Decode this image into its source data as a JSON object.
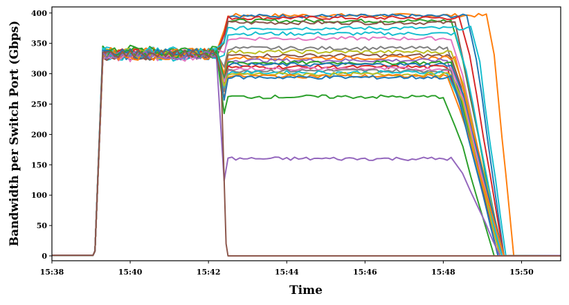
{
  "chart_data": {
    "type": "line",
    "title": "",
    "xlabel": "Time",
    "ylabel": "Bandwidth per Switch Port (Gbps)",
    "x_unit": "time of day (HH:MM)",
    "xlim": [
      "15:38",
      "15:51"
    ],
    "ylim": [
      -8,
      410
    ],
    "x_ticks": [
      "15:38",
      "15:40",
      "15:42",
      "15:44",
      "15:46",
      "15:48",
      "15:50"
    ],
    "y_ticks": [
      0,
      50,
      100,
      150,
      200,
      250,
      300,
      350,
      400
    ],
    "grid": false,
    "legend": "none",
    "phases": {
      "idle_start": "15:38",
      "ramp_1_start": "15:39",
      "plateau_1_start": "15:39.3",
      "phase_change": "15:42.3",
      "plateau_2_start": "15:42.5",
      "plateau_2_end": "15:48.2",
      "idle_end": "15:51"
    },
    "series": [
      {
        "color": "#ff7f0e",
        "plateau1": 335,
        "plateau2": 396,
        "ramp_start": "15:39.05",
        "drop_start": "15:49.2",
        "drop_end": "15:49.8"
      },
      {
        "color": "#1f77b4",
        "plateau1": 332,
        "plateau2": 395,
        "ramp_start": "15:39.05",
        "drop_start": "15:48.7",
        "drop_end": "15:49.55"
      },
      {
        "color": "#d62728",
        "plateau1": 334,
        "plateau2": 392,
        "ramp_start": "15:39.05",
        "drop_start": "15:48.5",
        "drop_end": "15:49.55"
      },
      {
        "color": "#2ca02c",
        "plateau1": 340,
        "plateau2": 387,
        "ramp_start": "15:39.05",
        "drop_start": "15:48.3",
        "drop_end": "15:49.5"
      },
      {
        "color": "#8c564b",
        "plateau1": 330,
        "plateau2": 384,
        "ramp_start": "15:39.05",
        "drop_start": "15:48.35",
        "drop_end": "15:49.5"
      },
      {
        "color": "#17becf",
        "plateau1": 337,
        "plateau2": 375,
        "ramp_start": "15:39.05",
        "drop_start": "15:48.8",
        "drop_end": "15:49.6"
      },
      {
        "color": "#17becf",
        "plateau1": 328,
        "plateau2": 366,
        "ramp_start": "15:39.05",
        "drop_start": "15:48.4",
        "drop_end": "15:49.5"
      },
      {
        "color": "#e377c2",
        "plateau1": 333,
        "plateau2": 358,
        "ramp_start": "15:39.05",
        "drop_start": "15:48.3",
        "drop_end": "15:49.45"
      },
      {
        "color": "#7f7f7f",
        "plateau1": 331,
        "plateau2": 342,
        "ramp_start": "15:39.05",
        "drop_start": "15:48.2",
        "drop_end": "15:49.5"
      },
      {
        "color": "#bcbd22",
        "plateau1": 335,
        "plateau2": 336,
        "ramp_start": "15:39.05",
        "drop_start": "15:48.3",
        "drop_end": "15:49.55"
      },
      {
        "color": "#8c564b",
        "plateau1": 329,
        "plateau2": 330,
        "ramp_start": "15:39.05",
        "drop_start": "15:48.25",
        "drop_end": "15:49.45"
      },
      {
        "color": "#ff7f0e",
        "plateau1": 336,
        "plateau2": 326,
        "ramp_start": "15:39.05",
        "drop_start": "15:48.35",
        "drop_end": "15:49.5"
      },
      {
        "color": "#9467bd",
        "plateau1": 332,
        "plateau2": 322,
        "ramp_start": "15:39.05",
        "drop_start": "15:48.2",
        "drop_end": "15:49.4"
      },
      {
        "color": "#2ca02c",
        "plateau1": 338,
        "plateau2": 318,
        "ramp_start": "15:39.05",
        "drop_start": "15:48.25",
        "drop_end": "15:49.45"
      },
      {
        "color": "#1f77b4",
        "plateau1": 330,
        "plateau2": 315,
        "ramp_start": "15:39.05",
        "drop_start": "15:48.3",
        "drop_end": "15:49.55"
      },
      {
        "color": "#d62728",
        "plateau1": 334,
        "plateau2": 311,
        "ramp_start": "15:39.05",
        "drop_start": "15:48.2",
        "drop_end": "15:49.45"
      },
      {
        "color": "#e377c2",
        "plateau1": 327,
        "plateau2": 308,
        "ramp_start": "15:39.05",
        "drop_start": "15:48.3",
        "drop_end": "15:49.5"
      },
      {
        "color": "#7f7f7f",
        "plateau1": 333,
        "plateau2": 305,
        "ramp_start": "15:39.05",
        "drop_start": "15:48.25",
        "drop_end": "15:49.4"
      },
      {
        "color": "#17becf",
        "plateau1": 336,
        "plateau2": 302,
        "ramp_start": "15:39.05",
        "drop_start": "15:48.2",
        "drop_end": "15:49.5"
      },
      {
        "color": "#bcbd22",
        "plateau1": 331,
        "plateau2": 299,
        "ramp_start": "15:39.05",
        "drop_start": "15:48.3",
        "drop_end": "15:49.45"
      },
      {
        "color": "#ff7f0e",
        "plateau1": 329,
        "plateau2": 296,
        "ramp_start": "15:39.05",
        "drop_start": "15:48.2",
        "drop_end": "15:49.55"
      },
      {
        "color": "#1f77b4",
        "plateau1": 334,
        "plateau2": 294,
        "ramp_start": "15:39.05",
        "drop_start": "15:48.25",
        "drop_end": "15:49.4"
      },
      {
        "color": "#2ca02c",
        "plateau1": 332,
        "plateau2": 262,
        "ramp_start": "15:39.05",
        "drop_start": "15:48.1",
        "drop_end": "15:49.3"
      },
      {
        "color": "#9467bd",
        "plateau1": 330,
        "plateau2": 160,
        "ramp_start": "15:39.05",
        "drop_start": "15:48.3",
        "drop_end": "15:49.45"
      },
      {
        "color": "#8c564b",
        "plateau1": 333,
        "plateau2": 0,
        "ramp_start": "15:39.05",
        "drop_start": "15:42.35",
        "drop_end": "15:42.5"
      }
    ]
  }
}
